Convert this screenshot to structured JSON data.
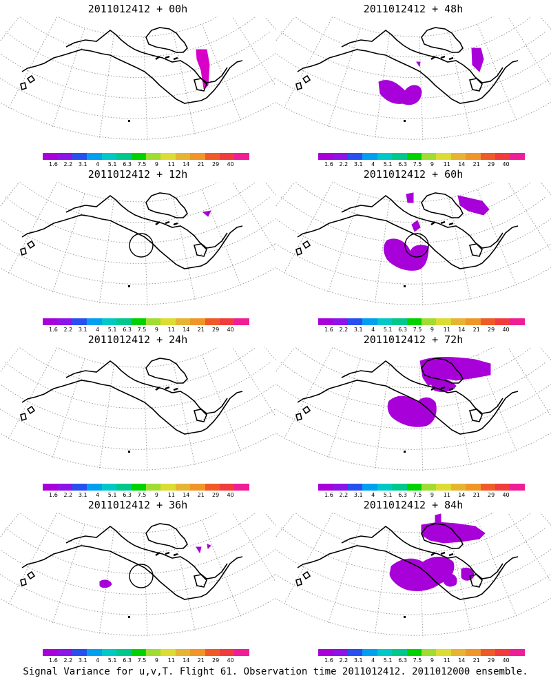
{
  "panels": [
    {
      "title": "2011012412 + 00h",
      "lead": "00h"
    },
    {
      "title": "2011012412 + 48h",
      "lead": "48h"
    },
    {
      "title": "2011012412 + 12h",
      "lead": "12h"
    },
    {
      "title": "2011012412 + 60h",
      "lead": "60h"
    },
    {
      "title": "2011012412 + 24h",
      "lead": "24h"
    },
    {
      "title": "2011012412 + 72h",
      "lead": "72h"
    },
    {
      "title": "2011012412 + 36h",
      "lead": "36h"
    },
    {
      "title": "2011012412 + 84h",
      "lead": "84h"
    }
  ],
  "colorbar": {
    "colors": [
      "#a800d8",
      "#8c14e6",
      "#2850f0",
      "#00a0f0",
      "#00c8c8",
      "#00c88c",
      "#00d200",
      "#a0dc32",
      "#dcdc32",
      "#e6b432",
      "#f09628",
      "#f05a28",
      "#f03c3c",
      "#f01e96"
    ],
    "labels": [
      "1.6",
      "2.2",
      "3.1",
      "4",
      "5.1",
      "6.3",
      "7.5",
      "9",
      "11",
      "14",
      "21",
      "29",
      "40"
    ]
  },
  "footer": "Signal Variance for u,v,T. Flight 61. Observation time 2011012412. 2011012000 ensemble."
}
